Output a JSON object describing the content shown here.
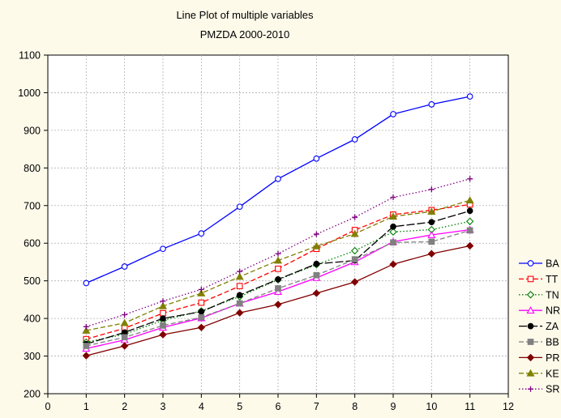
{
  "chart_data": {
    "type": "line",
    "title": "Line Plot of multiple variables",
    "subtitle": "PMZDA 2000-2010",
    "xlabel": "",
    "ylabel": "",
    "xlim": [
      0,
      12
    ],
    "ylim": [
      200,
      1100
    ],
    "xticks": [
      0,
      1,
      2,
      3,
      4,
      5,
      6,
      7,
      8,
      9,
      10,
      11,
      12
    ],
    "yticks": [
      200,
      300,
      400,
      500,
      600,
      700,
      800,
      900,
      1000,
      1100
    ],
    "grid": true,
    "legend_position": "right",
    "x": [
      1,
      2,
      3,
      4,
      5,
      6,
      7,
      8,
      9,
      10,
      11
    ],
    "series": [
      {
        "name": "BA",
        "color": "#0000ff",
        "marker": "circle-open",
        "dash": "solid",
        "values": [
          494,
          538,
          585,
          626,
          697,
          771,
          825,
          876,
          943,
          969,
          990
        ]
      },
      {
        "name": "TT",
        "color": "#ff0000",
        "marker": "square-open",
        "dash": "dashed",
        "values": [
          345,
          374,
          414,
          442,
          486,
          532,
          585,
          635,
          676,
          688,
          703
        ]
      },
      {
        "name": "TN",
        "color": "#008000",
        "marker": "diamond-open",
        "dash": "dotted",
        "values": [
          337,
          358,
          395,
          420,
          458,
          503,
          543,
          580,
          630,
          636,
          658
        ]
      },
      {
        "name": "NR",
        "color": "#ff00ff",
        "marker": "triangle-open",
        "dash": "solid",
        "values": [
          320,
          343,
          376,
          401,
          440,
          471,
          508,
          550,
          604,
          622,
          636
        ]
      },
      {
        "name": "ZA",
        "color": "#000000",
        "marker": "circle-filled",
        "dash": "longdash",
        "values": [
          332,
          363,
          400,
          418,
          462,
          504,
          545,
          554,
          644,
          656,
          686
        ]
      },
      {
        "name": "BB",
        "color": "#808080",
        "marker": "square-filled",
        "dash": "dashed",
        "values": [
          327,
          350,
          381,
          403,
          440,
          480,
          515,
          557,
          602,
          604,
          634
        ]
      },
      {
        "name": "PR",
        "color": "#800000",
        "marker": "diamond-filled",
        "dash": "solid",
        "values": [
          301,
          327,
          357,
          376,
          415,
          437,
          467,
          497,
          544,
          572,
          593
        ]
      },
      {
        "name": "KE",
        "color": "#808000",
        "marker": "triangle-filled",
        "dash": "dashed",
        "values": [
          368,
          388,
          433,
          467,
          511,
          554,
          592,
          625,
          671,
          684,
          714
        ]
      },
      {
        "name": "SR",
        "color": "#800080",
        "marker": "plus",
        "dash": "dotted",
        "values": [
          378,
          410,
          446,
          477,
          525,
          572,
          624,
          669,
          722,
          743,
          771
        ]
      }
    ]
  }
}
